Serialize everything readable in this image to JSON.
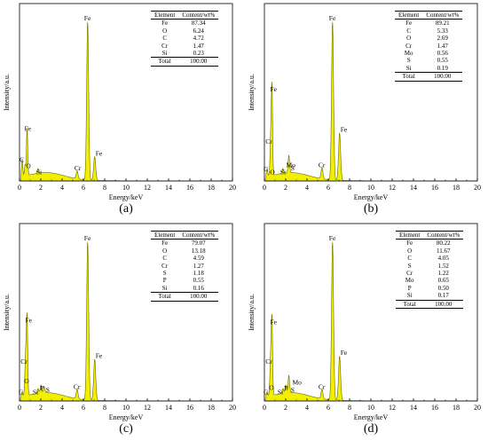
{
  "chart_data": [
    {
      "panel": "(a)",
      "type": "area",
      "xlabel": "Energy/keV",
      "ylabel": "Intensity/a.u.",
      "xlim": [
        0,
        20
      ],
      "x_ticks": [
        0,
        2,
        4,
        6,
        8,
        10,
        12,
        14,
        16,
        18,
        20
      ],
      "peaks": [
        {
          "x": 0.25,
          "y": 0.11,
          "label": "C"
        },
        {
          "x": 0.52,
          "y": 0.07,
          "label": "O"
        },
        {
          "x": 0.71,
          "y": 0.3,
          "label": "Fe"
        },
        {
          "x": 1.74,
          "y": 0.03,
          "label": "Si"
        },
        {
          "x": 5.41,
          "y": 0.05,
          "label": "Cr"
        },
        {
          "x": 6.4,
          "y": 1.0,
          "label": "Fe"
        },
        {
          "x": 7.06,
          "y": 0.15,
          "label": "Fe"
        }
      ],
      "table": {
        "headers": [
          "Element",
          "Content/wt%"
        ],
        "rows": [
          [
            "Fe",
            "87.34"
          ],
          [
            "O",
            "6.24"
          ],
          [
            "C",
            "4.72"
          ],
          [
            "Cr",
            "1.47"
          ],
          [
            "Si",
            "0.23"
          ]
        ],
        "total": [
          "Total",
          "100.00"
        ]
      }
    },
    {
      "panel": "(b)",
      "type": "area",
      "xlabel": "Energy/keV",
      "ylabel": "Intensity/a.u.",
      "xlim": [
        0,
        20
      ],
      "x_ticks": [
        0,
        2,
        4,
        6,
        8,
        10,
        12,
        14,
        16,
        18,
        20
      ],
      "peaks": [
        {
          "x": 0.25,
          "y": 0.05,
          "label": "C"
        },
        {
          "x": 0.52,
          "y": 0.03,
          "label": "O"
        },
        {
          "x": 0.6,
          "y": 0.22,
          "label": "Cr"
        },
        {
          "x": 0.71,
          "y": 0.55,
          "label": "Fe"
        },
        {
          "x": 1.74,
          "y": 0.03,
          "label": "Si"
        },
        {
          "x": 2.29,
          "y": 0.07,
          "label": "Mo"
        },
        {
          "x": 2.31,
          "y": 0.04,
          "label": "S"
        },
        {
          "x": 5.41,
          "y": 0.07,
          "label": "Cr"
        },
        {
          "x": 6.4,
          "y": 1.0,
          "label": "Fe"
        },
        {
          "x": 7.06,
          "y": 0.3,
          "label": "Fe"
        }
      ],
      "table": {
        "headers": [
          "Element",
          "Content/wt%"
        ],
        "rows": [
          [
            "Fe",
            "89.21"
          ],
          [
            "C",
            "5.33"
          ],
          [
            "O",
            "2.69"
          ],
          [
            "Cr",
            "1.47"
          ],
          [
            "Mo",
            "0.56"
          ],
          [
            "S",
            "0.55"
          ],
          [
            "Si",
            "0.19"
          ]
        ],
        "total": [
          "Total",
          "100.00"
        ]
      }
    },
    {
      "panel": "(c)",
      "type": "area",
      "xlabel": "Energy/keV",
      "ylabel": "Intensity/a.u.",
      "xlim": [
        0,
        20
      ],
      "x_ticks": [
        0,
        2,
        4,
        6,
        8,
        10,
        12,
        14,
        16,
        18,
        20
      ],
      "peaks": [
        {
          "x": 0.25,
          "y": 0.03,
          "label": "C"
        },
        {
          "x": 0.52,
          "y": 0.1,
          "label": "O"
        },
        {
          "x": 0.6,
          "y": 0.22,
          "label": "Cr"
        },
        {
          "x": 0.71,
          "y": 0.48,
          "label": "Fe"
        },
        {
          "x": 1.74,
          "y": 0.03,
          "label": "Si"
        },
        {
          "x": 2.01,
          "y": 0.05,
          "label": "P"
        },
        {
          "x": 2.31,
          "y": 0.04,
          "label": "S"
        },
        {
          "x": 5.41,
          "y": 0.06,
          "label": "Cr"
        },
        {
          "x": 6.4,
          "y": 1.0,
          "label": "Fe"
        },
        {
          "x": 7.06,
          "y": 0.26,
          "label": "Fe"
        }
      ],
      "table": {
        "headers": [
          "Element",
          "Content/wt%"
        ],
        "rows": [
          [
            "Fe",
            "79.07"
          ],
          [
            "O",
            "13.18"
          ],
          [
            "C",
            "4.59"
          ],
          [
            "Cr",
            "1.27"
          ],
          [
            "S",
            "1.18"
          ],
          [
            "P",
            "0.55"
          ],
          [
            "Si",
            "0.16"
          ]
        ],
        "total": [
          "Total",
          "100.00"
        ]
      }
    },
    {
      "panel": "(d)",
      "type": "area",
      "xlabel": "Energy/keV",
      "ylabel": "Intensity/a.u.",
      "xlim": [
        0,
        20
      ],
      "x_ticks": [
        0,
        2,
        4,
        6,
        8,
        10,
        12,
        14,
        16,
        18,
        20
      ],
      "peaks": [
        {
          "x": 0.25,
          "y": 0.03,
          "label": "C"
        },
        {
          "x": 0.52,
          "y": 0.06,
          "label": "O"
        },
        {
          "x": 0.6,
          "y": 0.22,
          "label": "Cr"
        },
        {
          "x": 0.71,
          "y": 0.47,
          "label": "Fe"
        },
        {
          "x": 1.74,
          "y": 0.03,
          "label": "Si"
        },
        {
          "x": 2.01,
          "y": 0.05,
          "label": "P"
        },
        {
          "x": 2.29,
          "y": 0.07,
          "label": "Mo"
        },
        {
          "x": 2.31,
          "y": 0.04,
          "label": "S"
        },
        {
          "x": 5.41,
          "y": 0.06,
          "label": "Cr"
        },
        {
          "x": 6.4,
          "y": 1.0,
          "label": "Fe"
        },
        {
          "x": 7.06,
          "y": 0.28,
          "label": "Fe"
        }
      ],
      "table": {
        "headers": [
          "Element",
          "Content/wt%"
        ],
        "rows": [
          [
            "Fe",
            "80.22"
          ],
          [
            "O",
            "11.67"
          ],
          [
            "C",
            "4.05"
          ],
          [
            "S",
            "1.52"
          ],
          [
            "Cr",
            "1.22"
          ],
          [
            "Mo",
            "0.65"
          ],
          [
            "P",
            "0.50"
          ],
          [
            "Si",
            "0.17"
          ]
        ],
        "total": [
          "Total",
          "100.00"
        ]
      }
    }
  ],
  "colors": {
    "spectrum_fill": "#f2f000",
    "spectrum_stroke": "#6a6a00",
    "axis": "#000000"
  }
}
